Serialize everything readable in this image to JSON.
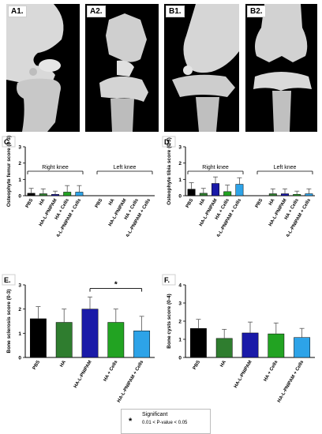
{
  "ct_panels": [
    {
      "tag": "A1."
    },
    {
      "tag": "A2."
    },
    {
      "tag": "B1."
    },
    {
      "tag": "B2."
    }
  ],
  "charts": [
    {
      "tag": "C.",
      "type": "bar",
      "ylabel": "Osteophyte femur score (0-3)",
      "ylim": [
        0,
        3
      ],
      "yticks": [
        "0",
        "1",
        "2",
        "3"
      ],
      "groups": [
        {
          "label": "Right knee",
          "categories": [
            "PBS",
            "HA",
            "HA-L-PNIPAM",
            "HA + Cells",
            "HA-L-PNIPAM + Cells"
          ],
          "values": [
            0.15,
            0.12,
            0.08,
            0.22,
            0.22
          ],
          "errors": [
            0.3,
            0.3,
            0.2,
            0.4,
            0.4
          ]
        },
        {
          "label": "Left knee",
          "categories": [
            "PBS",
            "HA",
            "HA-L-PNIPAM",
            "HA + Cells",
            "HA-L-PNIPAM + Cells"
          ],
          "values": [
            0,
            0,
            0,
            0,
            0
          ],
          "errors": [
            0,
            0,
            0,
            0,
            0
          ]
        }
      ],
      "colors": [
        "#000000",
        "#2f7d2f",
        "#1a1aa8",
        "#22a322",
        "#2da3e8"
      ]
    },
    {
      "tag": "D.",
      "type": "bar",
      "ylabel": "Osteophyte tibia score (0-3)",
      "ylim": [
        0,
        3
      ],
      "yticks": [
        "0",
        "1",
        "2",
        "3"
      ],
      "groups": [
        {
          "label": "Right knee",
          "categories": [
            "PBS",
            "HA",
            "HA-L-PNIPAM",
            "HA + Cells",
            "HA-L-PNIPAM + Cells"
          ],
          "values": [
            0.4,
            0.15,
            0.75,
            0.25,
            0.7
          ],
          "errors": [
            0.4,
            0.3,
            0.4,
            0.4,
            0.4
          ]
        },
        {
          "label": "Left knee",
          "categories": [
            "PBS",
            "HA",
            "HA-L-PNIPAM",
            "HA + Cells",
            "HA-L-PNIPAM + Cells"
          ],
          "values": [
            0,
            0.12,
            0.12,
            0.08,
            0.12
          ],
          "errors": [
            0,
            0.3,
            0.3,
            0.2,
            0.3
          ]
        }
      ],
      "colors": [
        "#000000",
        "#2f7d2f",
        "#1a1aa8",
        "#22a322",
        "#2da3e8"
      ]
    },
    {
      "tag": "E.",
      "type": "bar",
      "ylabel": "Bone sclerosis score (0-3)",
      "ylim": [
        0,
        3
      ],
      "yticks": [
        "0",
        "1",
        "2",
        "3"
      ],
      "groups": [
        {
          "label": "",
          "categories": [
            "PBS",
            "HA",
            "HA-L-PNIPAM",
            "HA + Cells",
            "HA-L-PNIPAM + Cells"
          ],
          "values": [
            1.6,
            1.45,
            2.0,
            1.45,
            1.1
          ],
          "errors": [
            0.5,
            0.55,
            0.5,
            0.55,
            0.6
          ]
        }
      ],
      "colors": [
        "#000000",
        "#2f7d2f",
        "#1a1aa8",
        "#22a322",
        "#2da3e8"
      ],
      "significance": {
        "from": 2,
        "to": 4,
        "label": "*"
      }
    },
    {
      "tag": "F.",
      "type": "bar",
      "ylabel": "Bone cysts score (0-4)",
      "ylim": [
        0,
        4
      ],
      "yticks": [
        "0",
        "1",
        "2",
        "3",
        "4"
      ],
      "groups": [
        {
          "label": "",
          "categories": [
            "PBS",
            "HA",
            "HA-L-PNIPAM",
            "HA + Cells",
            "HA-L-PNIPAM + Cells"
          ],
          "values": [
            1.6,
            1.05,
            1.35,
            1.3,
            1.1
          ],
          "errors": [
            0.5,
            0.5,
            0.6,
            0.6,
            0.5
          ]
        }
      ],
      "colors": [
        "#000000",
        "#2f7d2f",
        "#1a1aa8",
        "#22a322",
        "#2da3e8"
      ]
    }
  ],
  "legend": {
    "symbol": "*",
    "label": "Significant",
    "detail": "0.01 < P-value < 0.05"
  }
}
